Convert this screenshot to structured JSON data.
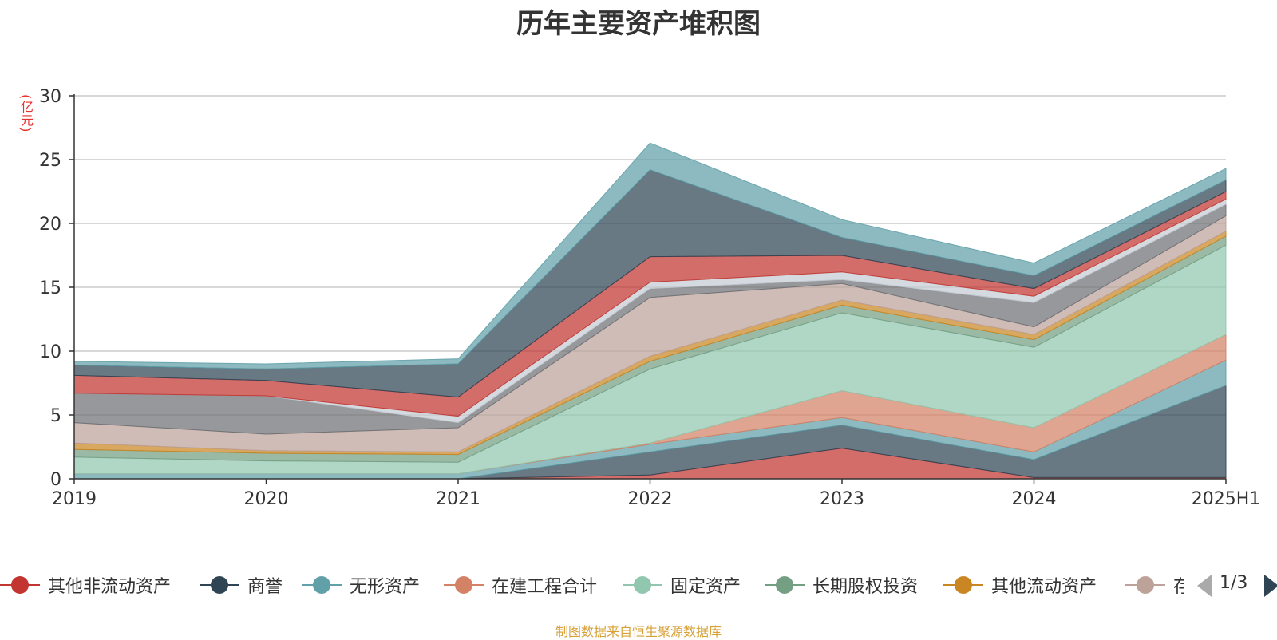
{
  "title": "历年主要资产堆积图",
  "unit": "(亿元)",
  "source": "制图数据来自恒生聚源数据库",
  "pager": {
    "page": "1/3"
  },
  "legend": [
    {
      "name": "其他非流动资产",
      "color": "#c23531"
    },
    {
      "name": "商誉",
      "color": "#2f4554"
    },
    {
      "name": "无形资产",
      "color": "#61a0a8"
    },
    {
      "name": "在建工程合计",
      "color": "#d48265"
    },
    {
      "name": "固定资产",
      "color": "#91c7ae"
    },
    {
      "name": "长期股权投资",
      "color": "#749f83"
    },
    {
      "name": "其他流动资产",
      "color": "#ca8622"
    },
    {
      "name": "存",
      "color": "#bda29a"
    }
  ],
  "chart_data": {
    "type": "area",
    "stacked": true,
    "x": [
      "2019",
      "2020",
      "2021",
      "2022",
      "2023",
      "2024",
      "2025H1"
    ],
    "ylim": [
      0,
      30
    ],
    "yticks": [
      0,
      5,
      10,
      15,
      20,
      25,
      30
    ],
    "grid": true,
    "series": [
      {
        "color": "#c23531",
        "values": [
          0.0,
          0.0,
          0.0,
          0.3,
          2.4,
          0.1,
          0.1
        ]
      },
      {
        "color": "#2f4554",
        "values": [
          0.0,
          0.0,
          0.0,
          1.8,
          1.8,
          1.4,
          7.2
        ]
      },
      {
        "color": "#61a0a8",
        "values": [
          0.4,
          0.4,
          0.4,
          0.6,
          0.6,
          0.6,
          2.0
        ]
      },
      {
        "color": "#d48265",
        "values": [
          0.0,
          0.0,
          0.0,
          0.1,
          2.1,
          1.9,
          2.0
        ]
      },
      {
        "color": "#91c7ae",
        "values": [
          1.3,
          1.0,
          0.9,
          5.8,
          6.1,
          6.3,
          7.0
        ]
      },
      {
        "color": "#749f83",
        "values": [
          0.6,
          0.6,
          0.6,
          0.6,
          0.6,
          0.6,
          0.7
        ]
      },
      {
        "color": "#ca8622",
        "values": [
          0.5,
          0.2,
          0.2,
          0.4,
          0.4,
          0.4,
          0.4
        ]
      },
      {
        "color": "#bda29a",
        "values": [
          1.6,
          1.3,
          1.9,
          4.6,
          1.3,
          0.6,
          1.2
        ]
      },
      {
        "color": "#6e7074",
        "values": [
          2.3,
          3.0,
          0.4,
          0.7,
          0.3,
          1.9,
          0.9
        ]
      },
      {
        "color": "#c4ccd3",
        "values": [
          0.0,
          0.0,
          0.5,
          0.5,
          0.6,
          0.5,
          0.4
        ]
      },
      {
        "color": "#c23531",
        "values": [
          1.4,
          1.2,
          1.5,
          2.0,
          1.3,
          0.6,
          0.6
        ]
      },
      {
        "color": "#2f4554",
        "values": [
          0.8,
          0.9,
          2.6,
          6.8,
          1.4,
          1.0,
          0.9
        ]
      },
      {
        "color": "#61a0a8",
        "values": [
          0.3,
          0.4,
          0.4,
          2.1,
          1.4,
          1.0,
          0.9
        ]
      }
    ]
  }
}
